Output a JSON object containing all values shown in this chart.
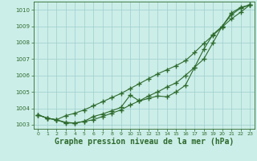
{
  "x": [
    0,
    1,
    2,
    3,
    4,
    5,
    6,
    7,
    8,
    9,
    10,
    11,
    12,
    13,
    14,
    15,
    16,
    17,
    18,
    19,
    20,
    21,
    22,
    23
  ],
  "line1": [
    1003.6,
    1003.4,
    1003.3,
    1003.15,
    1003.1,
    1003.2,
    1003.5,
    1003.65,
    1003.85,
    1004.05,
    1004.8,
    1004.45,
    1004.6,
    1004.75,
    1004.7,
    1005.0,
    1005.4,
    1006.5,
    1007.6,
    1008.5,
    1009.0,
    1009.7,
    1010.1,
    1010.3
  ],
  "line2": [
    1003.6,
    1003.4,
    1003.3,
    1003.55,
    1003.7,
    1003.9,
    1004.15,
    1004.4,
    1004.65,
    1004.9,
    1005.2,
    1005.5,
    1005.8,
    1006.1,
    1006.35,
    1006.6,
    1006.9,
    1007.4,
    1007.95,
    1008.45,
    1008.95,
    1009.45,
    1009.85,
    1010.3
  ],
  "line3": [
    1003.6,
    1003.4,
    1003.3,
    1003.1,
    1003.1,
    1003.2,
    1003.3,
    1003.5,
    1003.7,
    1003.9,
    1004.2,
    1004.45,
    1004.75,
    1005.0,
    1005.3,
    1005.55,
    1006.0,
    1006.5,
    1007.0,
    1008.0,
    1009.0,
    1009.8,
    1010.15,
    1010.3
  ],
  "ylim": [
    1002.75,
    1010.5
  ],
  "yticks": [
    1003,
    1004,
    1005,
    1006,
    1007,
    1008,
    1009,
    1010
  ],
  "line_color": "#2d6a2d",
  "bg_color": "#cceee8",
  "grid_color": "#9ecece",
  "xlabel": "Graphe pression niveau de la mer (hPa)",
  "xlabel_fontsize": 7,
  "marker": "+",
  "markersize": 4,
  "lw": 0.8
}
